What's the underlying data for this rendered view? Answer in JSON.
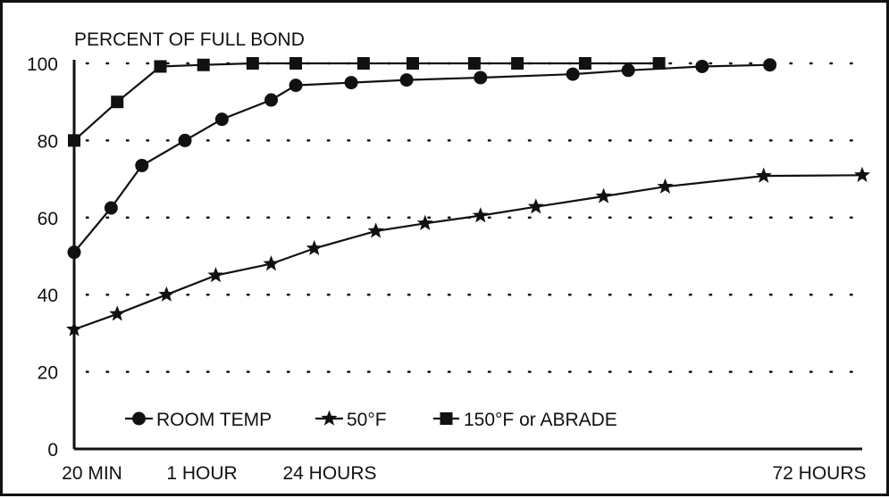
{
  "chart_data": {
    "type": "line",
    "ylabel": "PERCENT OF FULL BOND",
    "xlabel": "",
    "ylim": [
      0,
      100
    ],
    "yticks": [
      "0",
      "20",
      "40",
      "60",
      "80",
      "100"
    ],
    "xtick_labels": [
      "20 MIN",
      "1 HOUR",
      "24 HOURS",
      "72 HOURS"
    ],
    "grid": "dotted horizontal",
    "legend_position": "bottom",
    "series": [
      {
        "name": "ROOM TEMP",
        "marker": "circle",
        "x": [
          0,
          0.6,
          1.1,
          1.8,
          2.4,
          3.2,
          3.6,
          4.5,
          5.4,
          6.6,
          8.1,
          9.0,
          10.2,
          11.3
        ],
        "y": [
          51,
          62.5,
          73.5,
          80,
          85.5,
          90.5,
          94.3,
          95,
          95.7,
          96.3,
          97.2,
          98.2,
          99.2,
          99.6
        ]
      },
      {
        "name": "50°F",
        "marker": "star",
        "x": [
          0,
          0.7,
          1.5,
          2.3,
          3.2,
          3.9,
          4.9,
          5.7,
          6.6,
          7.5,
          8.6,
          9.6,
          11.2,
          12.8
        ],
        "y": [
          31,
          35,
          40,
          45,
          48,
          52,
          56.5,
          58.5,
          60.5,
          62.8,
          65.5,
          68,
          70.8,
          71
        ]
      },
      {
        "name": "150°F or ABRADE",
        "marker": "square",
        "x": [
          0,
          0.7,
          1.4,
          2.1,
          2.9,
          3.6,
          4.7,
          5.5,
          6.5,
          7.2,
          8.3,
          9.5
        ],
        "y": [
          80,
          90,
          99.2,
          99.6,
          100,
          100,
          100,
          100,
          100,
          100,
          100,
          100
        ]
      }
    ],
    "ROOM_TEMP_end_point_note": "",
    "colors": {
      "ink": "#111111",
      "background": "#ffffff"
    }
  }
}
